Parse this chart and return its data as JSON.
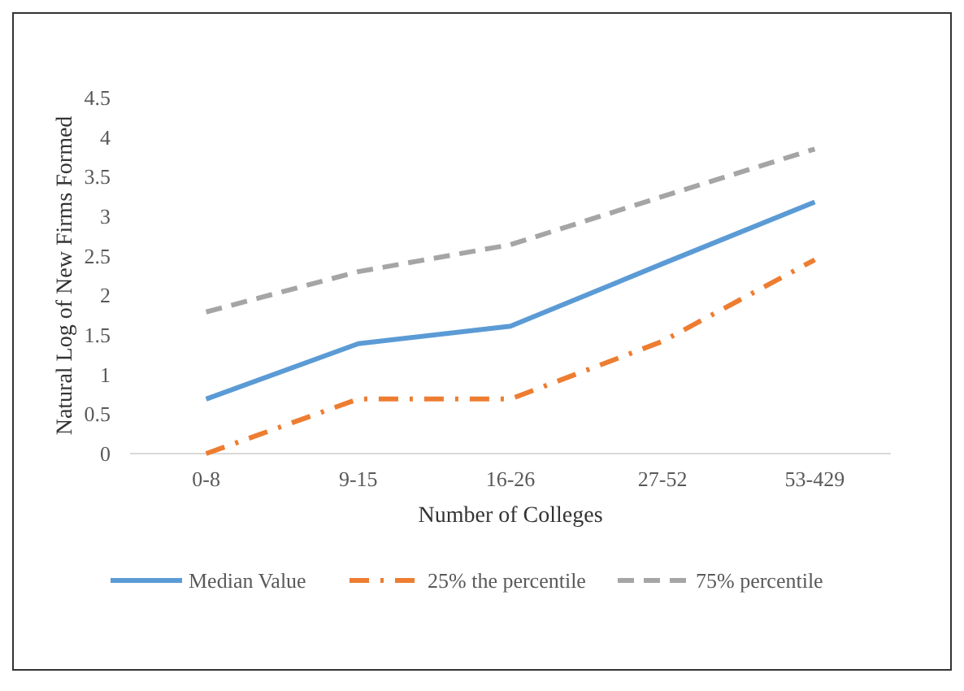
{
  "chart_data": {
    "type": "line",
    "xlabel": "Number of Colleges",
    "ylabel": "Natural Log of New Firms Formed",
    "categories": [
      "0-8",
      "9-15",
      "16-26",
      "27-52",
      "53-429"
    ],
    "series": [
      {
        "name": "Median Value",
        "color": "#5b9bd5",
        "line_style": "solid",
        "values": [
          0.69,
          1.39,
          1.61,
          2.4,
          3.18
        ]
      },
      {
        "name": "25% the percentile",
        "color": "#ed7d31",
        "line_style": "dashdot",
        "values": [
          0,
          0.69,
          0.69,
          1.42,
          2.45
        ]
      },
      {
        "name": "75% percentile",
        "color": "#a5a5a5",
        "line_style": "dashed",
        "values": [
          1.79,
          2.3,
          2.64,
          3.25,
          3.85
        ]
      }
    ],
    "ylim": [
      0,
      4.5
    ],
    "yticks": [
      0,
      0.5,
      1,
      1.5,
      2,
      2.5,
      3,
      3.5,
      4,
      4.5
    ],
    "legend": "bottom",
    "marker": "none",
    "grid": false
  }
}
